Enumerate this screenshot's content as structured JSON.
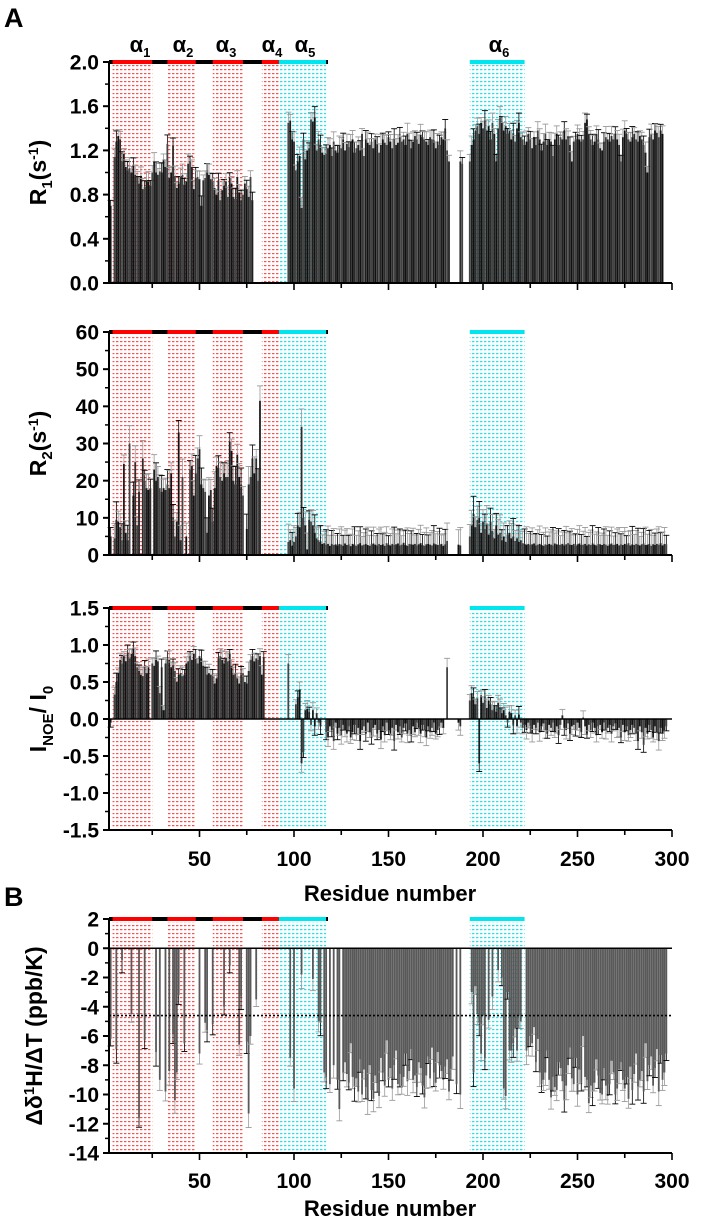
{
  "figure": {
    "panel_a_letter": "A",
    "panel_b_letter": "B",
    "colors": {
      "helix_red": "#ff0000",
      "helix_cyan": "#00e5ee",
      "bar_dark": "#1e1e1e",
      "bar_b": "#595959",
      "bar_outline": "#000000"
    }
  },
  "helices": [
    {
      "name": "α",
      "sub": "1",
      "start": 4,
      "end": 25,
      "color": "red"
    },
    {
      "name": "α",
      "sub": "2",
      "start": 33,
      "end": 48,
      "color": "red"
    },
    {
      "name": "α",
      "sub": "3",
      "start": 57,
      "end": 73,
      "color": "red"
    },
    {
      "name": "α",
      "sub": "4",
      "start": 83,
      "end": 92,
      "color": "red"
    },
    {
      "name": "α",
      "sub": "5",
      "start": 92,
      "end": 117,
      "color": "cyan"
    },
    {
      "name": "α",
      "sub": "6",
      "start": 193,
      "end": 222,
      "color": "cyan"
    }
  ],
  "chart_data": [
    {
      "id": "r1",
      "type": "bar",
      "title": "",
      "ylabel": {
        "main": "R",
        "sub": "1",
        "rest": "(s",
        "sup": "-1",
        "end": ")"
      },
      "xlabel": "",
      "xlim": [
        2,
        300
      ],
      "ylim": [
        0,
        2.0
      ],
      "yticks": [
        "0.0",
        "0.4",
        "0.8",
        "1.2",
        "1.6",
        "2.0"
      ],
      "xticks": [
        "50",
        "100",
        "150",
        "200",
        "250",
        "300"
      ],
      "typical_error": 0.08,
      "residue_start": 3,
      "values": [
        0.7,
        null,
        1.14,
        1.28,
        1.33,
        1.3,
        1.1,
        1.17,
        1.05,
        1.02,
        1.04,
        1.0,
        1.06,
        0.98,
        0.96,
        0.9,
        0.97,
        0.85,
        0.87,
        0.93,
        0.92,
        0.88,
        1.0,
        1.1,
        1.0,
        0.98,
        1.01,
        1.0,
        1.12,
        1.05,
        1.26,
        0.95,
        1.0,
        1.24,
        0.97,
        0.86,
        0.9,
        0.96,
        0.98,
        0.89,
        0.92,
        1.08,
        1.1,
        1.05,
        0.85,
        0.95,
        0.96,
        0.94,
        0.7,
        0.93,
        0.95,
        1.0,
        0.98,
        0.94,
        0.92,
        0.86,
        0.8,
        0.93,
        0.75,
        0.84,
        0.88,
        0.92,
        0.78,
        0.95,
        0.9,
        0.78,
        0.76,
        0.96,
        0.82,
        0.75,
        0.8,
        0.9,
        0.85,
        0.78,
        0.96,
        0.75,
        null,
        null,
        null,
        null,
        null,
        null,
        null,
        null,
        null,
        null,
        null,
        null,
        null,
        null,
        null,
        null,
        null,
        null,
        1.45,
        1.47,
        1.3,
        1.28,
        1.02,
        1.1,
        1.15,
        0.68,
        1.3,
        1.12,
        1.2,
        1.22,
        1.48,
        1.46,
        1.5,
        1.2,
        1.3,
        1.25,
        1.18,
        1.16,
        1.17,
        1.22,
        1.25,
        1.15,
        1.28,
        1.2,
        1.18,
        1.25,
        1.22,
        1.3,
        1.2,
        1.26,
        1.23,
        1.28,
        1.3,
        1.18,
        1.22,
        1.25,
        1.2,
        1.35,
        1.15,
        1.3,
        1.27,
        1.25,
        1.28,
        1.22,
        1.3,
        1.26,
        1.18,
        1.25,
        1.3,
        1.27,
        1.25,
        1.32,
        1.28,
        1.22,
        1.3,
        1.25,
        1.27,
        1.32,
        1.28,
        1.3,
        1.25,
        1.35,
        1.3,
        1.22,
        1.28,
        1.33,
        1.3,
        1.26,
        1.34,
        1.32,
        1.3,
        1.28,
        1.25,
        1.32,
        1.3,
        1.29,
        1.22,
        1.28,
        1.25,
        1.32,
        1.3,
        1.4,
        1.2,
        1.1,
        null,
        null,
        null,
        null,
        null,
        1.1,
        1.08,
        null,
        null,
        null,
        1.1,
        1.25,
        1.3,
        1.38,
        1.42,
        1.35,
        1.45,
        1.4,
        1.48,
        1.38,
        1.42,
        1.3,
        1.45,
        1.35,
        1.1,
        1.4,
        1.5,
        1.45,
        1.38,
        1.42,
        1.35,
        1.38,
        1.3,
        1.35,
        1.28,
        1.4,
        1.45,
        1.32,
        1.3,
        1.25,
        1.28,
        1.35,
        1.3,
        1.22,
        1.32,
        1.25,
        1.38,
        1.3,
        1.2,
        1.28,
        1.35,
        1.25,
        1.3,
        1.28,
        1.15,
        1.3,
        1.35,
        1.25,
        1.32,
        1.3,
        1.38,
        1.3,
        1.32,
        1.25,
        1.1,
        1.28,
        1.3,
        1.35,
        1.3,
        1.28,
        1.3,
        1.45,
        1.48,
        1.35,
        1.3,
        1.25,
        1.28,
        1.35,
        1.3,
        1.22,
        1.2,
        1.28,
        1.32,
        1.3,
        1.28,
        1.33,
        1.3,
        1.35,
        1.3,
        1.25,
        1.1,
        1.32,
        1.38,
        1.35,
        1.3,
        1.28,
        1.32,
        1.35,
        1.3,
        1.28,
        1.33,
        1.3,
        1.25,
        1.18,
        1.0,
        1.32,
        1.35,
        1.3,
        1.38,
        1.36,
        1.32,
        1.38,
        1.35
      ]
    },
    {
      "id": "r2",
      "type": "bar",
      "title": "",
      "ylabel": {
        "main": "R",
        "sub": "2",
        "rest": "(s",
        "sup": "-1",
        "end": ")"
      },
      "xlabel": "",
      "xlim": [
        2,
        300
      ],
      "ylim": [
        0,
        60
      ],
      "yticks": [
        "0",
        "10",
        "20",
        "30",
        "40",
        "50",
        "60"
      ],
      "xticks": [
        "50",
        "100",
        "150",
        "200",
        "250",
        "300"
      ],
      "typical_error": 4,
      "residue_start": 3,
      "values": [
        5.0,
        null,
        4.5,
        9.5,
        9.0,
        7.5,
        4.0,
        24.5,
        6.0,
        4.0,
        30.0,
        null,
        16.0,
        25.0,
        8.0,
        17.0,
        null,
        26.0,
        20.0,
        18.0,
        17.5,
        18.0,
        null,
        23.0,
        20.0,
        21.0,
        18.0,
        17.0,
        18.0,
        17.5,
        19.0,
        18.0,
        22.0,
        10.0,
        5.0,
        9.0,
        33.0,
        4.0,
        21.0,
        null,
        5.0,
        null,
        23.0,
        24.0,
        16.0,
        22.0,
        26.0,
        28.5,
        19.0,
        18.0,
        17.0,
        6.0,
        16.0,
        17.5,
        9.0,
        18.0,
        24.0,
        23.5,
        21.0,
        20.0,
        22.0,
        21.0,
        21.0,
        30.5,
        28.0,
        20.0,
        19.0,
        27.0,
        21.0,
        19.0,
        16.0,
        null,
        7.0,
        19.0,
        21.0,
        26.0,
        22.0,
        26.0,
        20.0,
        41.5,
        null,
        null,
        null,
        null,
        null,
        null,
        null,
        null,
        null,
        null,
        null,
        null,
        null,
        null,
        3.5,
        4.0,
        2.5,
        3.5,
        5.0,
        8.0,
        7.5,
        34.5,
        10.0,
        8.0,
        1.5,
        9.5,
        9.0,
        8.0,
        6.0,
        4.5,
        4.0,
        3.5,
        3.0,
        3.2,
        2.8,
        3.0,
        2.5,
        3.0,
        2.7,
        2.9,
        2.6,
        3.0,
        2.8,
        2.5,
        3.1,
        2.7,
        2.9,
        2.4,
        3.0,
        2.8,
        2.5,
        2.9,
        3.2,
        2.6,
        2.8,
        3.0,
        2.7,
        2.5,
        2.9,
        3.1,
        2.8,
        2.6,
        3.0,
        2.7,
        2.9,
        2.5,
        3.2,
        2.8,
        2.6,
        3.0,
        2.7,
        2.9,
        3.1,
        2.6,
        2.8,
        3.3,
        2.7,
        2.5,
        3.0,
        2.9,
        2.8,
        3.0,
        2.6,
        2.9,
        3.2,
        2.7,
        2.5,
        2.9,
        3.0,
        2.8,
        2.6,
        3.1,
        2.9,
        2.7,
        2.8,
        3.0,
        2.5,
        2.9,
        3.8,
        null,
        null,
        null,
        null,
        null,
        2.8,
        2.6,
        null,
        null,
        null,
        null,
        5.0,
        8.0,
        11.0,
        7.5,
        9.5,
        10.0,
        6.0,
        9.0,
        7.0,
        8.5,
        5.5,
        9.0,
        6.5,
        4.5,
        8.0,
        5.5,
        6.0,
        4.0,
        5.0,
        3.5,
        5.5,
        6.0,
        4.5,
        5.0,
        3.8,
        4.5,
        3.5,
        4.0,
        3.2,
        3.0,
        2.8,
        3.0,
        2.7,
        2.9,
        3.1,
        2.6,
        2.8,
        3.0,
        2.7,
        2.5,
        2.9,
        2.7,
        3.0,
        2.8,
        2.6,
        3.1,
        2.9,
        2.7,
        2.8,
        3.0,
        2.6,
        2.9,
        3.2,
        2.8,
        2.7,
        3.0,
        2.5,
        2.9,
        3.1,
        2.7,
        2.8,
        3.0,
        2.6,
        2.9,
        2.7,
        3.1,
        2.8,
        2.6,
        3.0,
        2.9,
        2.7,
        3.0,
        2.8,
        2.5,
        2.9,
        3.1,
        2.7,
        2.8,
        3.0,
        2.6,
        2.9,
        2.7,
        3.0,
        2.8,
        3.2,
        2.6,
        2.9,
        2.7,
        3.0,
        2.8,
        2.6,
        2.9,
        3.1,
        2.7,
        2.8,
        3.0,
        2.5,
        2.9,
        2.7,
        3.0,
        2.8,
        3.2,
        2.6,
        3.0,
        2.9
      ]
    },
    {
      "id": "noe",
      "type": "bar",
      "title": "",
      "ylabel": {
        "main": "I",
        "sub": "NOE",
        "rest": "/ I",
        "sub2": "0"
      },
      "xlabel": "Residue number",
      "xlim": [
        2,
        300
      ],
      "ylim": [
        -1.5,
        1.5
      ],
      "yticks": [
        "-1.5",
        "-1.0",
        "-0.5",
        "0.0",
        "0.5",
        "1.0",
        "1.5"
      ],
      "xticks": [
        "50",
        "100",
        "150",
        "200",
        "250",
        "300"
      ],
      "typical_error": 0.1,
      "residue_start": 3,
      "values": [
        -0.05,
        null,
        0.33,
        0.5,
        0.62,
        0.8,
        0.75,
        0.85,
        0.78,
        0.9,
        0.82,
        0.88,
        0.95,
        0.85,
        0.7,
        0.65,
        0.6,
        0.58,
        0.72,
        0.62,
        0.7,
        null,
        0.75,
        0.72,
        0.8,
        0.78,
        0.35,
        0.7,
        0.12,
        0.75,
        0.82,
        0.8,
        0.7,
        0.72,
        0.65,
        0.5,
        0.6,
        0.62,
        0.58,
        0.6,
        0.75,
        0.78,
        0.85,
        0.8,
        0.88,
        0.82,
        0.75,
        0.85,
        0.82,
        0.72,
        0.7,
        0.6,
        0.62,
        0.6,
        0.58,
        0.48,
        0.55,
        0.82,
        0.85,
        0.8,
        0.75,
        0.82,
        0.78,
        0.88,
        0.72,
        0.6,
        0.62,
        0.55,
        0.48,
        0.6,
        0.62,
        0.5,
        0.48,
        0.65,
        0.8,
        0.85,
        0.78,
        0.82,
        0.8,
        0.85,
        0.6,
        0.84,
        null,
        null,
        null,
        null,
        null,
        null,
        null,
        null,
        null,
        null,
        null,
        null,
        0.75,
        null,
        null,
        null,
        0.2,
        0.3,
        0.4,
        -0.6,
        -0.45,
        0.12,
        0.14,
        0.1,
        -0.08,
        0.12,
        -0.1,
        0.08,
        -0.05,
        -0.1,
        null,
        null,
        -0.18,
        -0.25,
        -0.1,
        -0.15,
        -0.3,
        -0.05,
        -0.2,
        -0.12,
        -0.22,
        -0.08,
        -0.15,
        -0.2,
        -0.1,
        -0.25,
        -0.18,
        -0.08,
        -0.22,
        -0.12,
        -0.3,
        -0.15,
        -0.1,
        -0.2,
        -0.05,
        -0.18,
        -0.25,
        -0.12,
        -0.08,
        -0.2,
        -0.15,
        -0.28,
        -0.1,
        -0.22,
        -0.05,
        -0.15,
        -0.2,
        -0.12,
        -0.3,
        -0.08,
        -0.18,
        -0.1,
        -0.25,
        -0.12,
        -0.06,
        -0.2,
        -0.15,
        -0.22,
        -0.1,
        -0.18,
        -0.05,
        -0.12,
        -0.2,
        -0.08,
        -0.15,
        -0.25,
        -0.1,
        -0.18,
        -0.12,
        -0.05,
        -0.2,
        -0.15,
        -0.1,
        -0.05,
        -0.12,
        null,
        0.7,
        null,
        null,
        null,
        null,
        null,
        -0.05,
        -0.1,
        null,
        null,
        null,
        null,
        0.25,
        0.35,
        0.3,
        0.2,
        0.28,
        -0.6,
        0.32,
        0.22,
        0.3,
        0.15,
        0.25,
        0.2,
        0.12,
        0.18,
        0.1,
        0.22,
        0.15,
        0.08,
        0.12,
        0.05,
        -0.05,
        0.1,
        0.08,
        -0.08,
        0.05,
        -0.1,
        0.06,
        -0.05,
        -0.12,
        -0.08,
        -0.15,
        -0.05,
        -0.1,
        -0.2,
        -0.08,
        -0.12,
        -0.05,
        -0.18,
        -0.1,
        -0.06,
        -0.15,
        -0.2,
        -0.08,
        -0.12,
        -0.05,
        -0.18,
        -0.1,
        -0.22,
        -0.08,
        0.05,
        -0.12,
        -0.15,
        -0.06,
        -0.2,
        -0.1,
        -0.08,
        -0.15,
        -0.05,
        -0.12,
        -0.18,
        0.02,
        -0.1,
        -0.2,
        -0.08,
        -0.15,
        -0.05,
        -0.12,
        -0.22,
        -0.1,
        -0.08,
        -0.18,
        -0.05,
        -0.15,
        -0.12,
        -0.08,
        -0.2,
        -0.1,
        -0.06,
        -0.15,
        -0.12,
        -0.25,
        -0.08,
        -0.18,
        -0.1,
        -0.22,
        -0.15,
        -0.08,
        -0.12,
        -0.2,
        -0.3,
        -0.1,
        -0.18,
        -0.35,
        -0.12,
        -0.2,
        -0.08,
        -0.15,
        -0.25,
        -0.1,
        -0.18,
        -0.3,
        -0.12,
        -0.2,
        -0.15,
        -0.1
      ]
    },
    {
      "id": "temp_coeff",
      "type": "bar",
      "title": "",
      "ylabel": {
        "main": "Δδ",
        "sup": "1",
        "rest": "H/ΔT (ppb/K)"
      },
      "xlabel": "Residue number",
      "xlim": [
        2,
        300
      ],
      "ylim": [
        -14,
        2
      ],
      "yticks": [
        "-14",
        "-12",
        "-10",
        "-8",
        "-6",
        "-4",
        "-2",
        "0",
        "2"
      ],
      "xticks": [
        "50",
        "100",
        "150",
        "200",
        "250",
        "300"
      ],
      "reference_line": -4.6,
      "typical_error": 0.8,
      "residue_start": 3,
      "values": [
        -6.2,
        null,
        null,
        -6.9,
        null,
        null,
        -0.8,
        null,
        null,
        null,
        null,
        -4.5,
        null,
        null,
        null,
        -11.6,
        null,
        null,
        -6.3,
        null,
        null,
        null,
        null,
        null,
        -7.1,
        null,
        -9.0,
        null,
        null,
        -9.8,
        null,
        -8.4,
        null,
        -5.8,
        -10.4,
        -8.5,
        -3.2,
        null,
        null,
        -6.5,
        null,
        null,
        null,
        null,
        null,
        null,
        null,
        -7.2,
        null,
        null,
        -5.1,
        -5.6,
        null,
        null,
        -5.2,
        null,
        null,
        null,
        null,
        null,
        -4.0,
        null,
        null,
        -1.2,
        null,
        null,
        null,
        null,
        -6.6,
        -3.3,
        null,
        null,
        -6.4,
        -11.3,
        -6.0,
        null,
        null,
        -3.5,
        null,
        null,
        null,
        null,
        null,
        null,
        null,
        null,
        null,
        null,
        null,
        null,
        null,
        null,
        null,
        null,
        null,
        -7.5,
        null,
        -9.6,
        null,
        null,
        null,
        -1.8,
        null,
        null,
        null,
        null,
        null,
        -2.1,
        null,
        null,
        -5.0,
        -5.1,
        null,
        -8.5,
        -8.8,
        null,
        -9.3,
        null,
        -8.0,
        null,
        -9.0,
        -11.0,
        null,
        -8.5,
        -7.8,
        -8.6,
        -9.2,
        -6.5,
        -8.8,
        -9.5,
        -8.9,
        -9.8,
        -7.6,
        -10.0,
        -8.3,
        -9.5,
        -10.4,
        -8.0,
        -9.7,
        -10.3,
        -8.7,
        -9.2,
        -10.1,
        -7.5,
        -8.5,
        -9.4,
        -6.3,
        -9.0,
        -8.2,
        -9.6,
        -8.0,
        -7.0,
        -9.3,
        -8.6,
        -9.5,
        -8.8,
        -7.2,
        -9.1,
        -8.4,
        -6.9,
        -9.0,
        -8.7,
        -9.5,
        -7.8,
        -8.2,
        -9.4,
        -10.2,
        -8.7,
        -7.4,
        -8.9,
        -6.8,
        -8.5,
        -9.2,
        -7.1,
        -8.0,
        -8.4,
        -9.0,
        -8.1,
        -7.6,
        -9.8,
        -8.3,
        -7.4,
        null,
        -9.3,
        null,
        -10.0,
        null,
        null,
        null,
        null,
        null,
        -3.0,
        -8.5,
        -2.6,
        -4.5,
        -5.1,
        -7.2,
        -4.6,
        -7.5,
        null,
        -4.9,
        null,
        -3.3,
        null,
        null,
        -1.5,
        null,
        -2.0,
        -9.6,
        -10.1,
        -3.0,
        -7.0,
        -7.0,
        -6.5,
        -5.5,
        -7.0,
        -4.6,
        -5.0,
        null,
        null,
        -7.0,
        -6.8,
        -6.0,
        -6.5,
        -5.4,
        -7.8,
        -6.2,
        -8.5,
        -9.3,
        -9.0,
        -8.5,
        -7.0,
        -9.0,
        -10.2,
        -8.8,
        -9.5,
        -9.7,
        -7.8,
        -8.2,
        -9.1,
        -10.4,
        -9.4,
        -8.0,
        -6.8,
        -8.9,
        -9.3,
        -7.5,
        -10.0,
        -8.3,
        -9.2,
        -6.0,
        -8.8,
        -9.0,
        -10.6,
        -9.4,
        -9.8,
        -9.2,
        -7.6,
        -8.7,
        -9.9,
        -10.0,
        -8.2,
        -9.4,
        -10.1,
        -9.3,
        -7.7,
        -8.5,
        -10.0,
        -9.6,
        -8.3,
        -7.8,
        -9.0,
        -9.6,
        -8.8,
        -10.3,
        -8.1,
        -9.7,
        -8.6,
        -7.2,
        -9.5,
        -9.0,
        -8.4,
        -9.8,
        -6.5,
        -9.1,
        -8.0,
        -7.4,
        -9.4,
        -8.2,
        -6.9,
        -9.8,
        -7.3,
        -9.0,
        -8.5,
        -7.2
      ]
    }
  ]
}
